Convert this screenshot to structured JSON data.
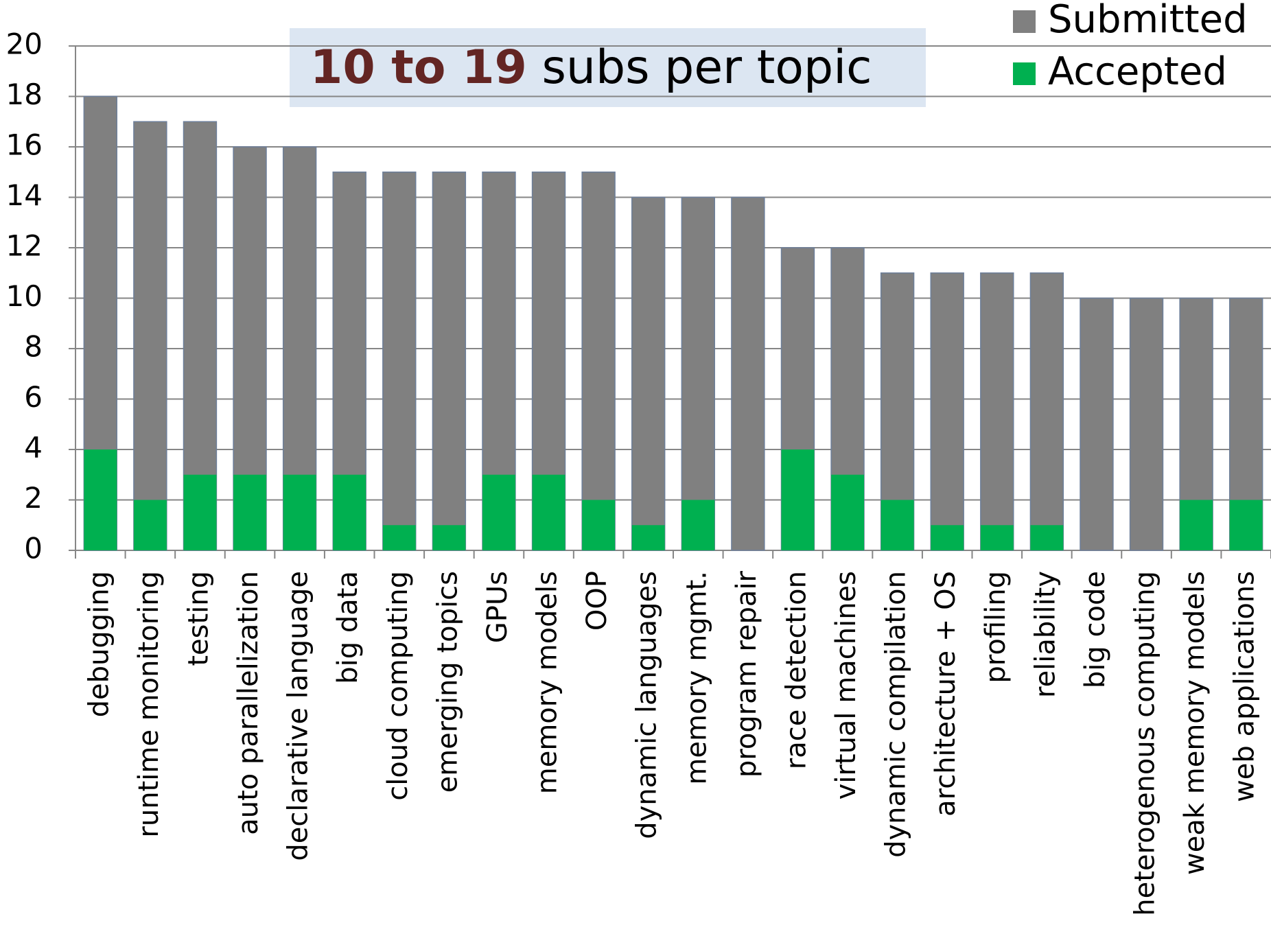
{
  "chart_data": {
    "type": "bar",
    "barmode": "overlay",
    "title_highlight": "10 to 19",
    "title_rest": "subs per topic",
    "categories": [
      "debugging",
      "runtime monitoring",
      "testing",
      "auto parallelization",
      "declarative language",
      "big data",
      "cloud computing",
      "emerging topics",
      "GPUs",
      "memory models",
      "OOP",
      "dynamic languages",
      "memory mgmt.",
      "program repair",
      "race detection",
      "virtual machines",
      "dynamic compilation",
      "architecture + OS",
      "profiling",
      "reliability",
      "big code",
      "heterogenous computing",
      "weak memory models",
      "web applications"
    ],
    "series": [
      {
        "name": "Submitted",
        "color": "#808080",
        "values": [
          18,
          17,
          17,
          16,
          16,
          15,
          15,
          15,
          15,
          15,
          15,
          14,
          14,
          14,
          12,
          12,
          11,
          11,
          11,
          11,
          10,
          10,
          10,
          10
        ]
      },
      {
        "name": "Accepted",
        "color": "#00b050",
        "values": [
          4,
          2,
          3,
          3,
          3,
          3,
          1,
          1,
          3,
          3,
          2,
          1,
          2,
          0,
          4,
          3,
          2,
          1,
          1,
          1,
          0,
          0,
          2,
          2
        ]
      }
    ],
    "ylim": [
      0,
      20
    ],
    "yticks": [
      0,
      2,
      4,
      6,
      8,
      10,
      12,
      14,
      16,
      18,
      20
    ],
    "grid": true,
    "legend": "top-right"
  }
}
